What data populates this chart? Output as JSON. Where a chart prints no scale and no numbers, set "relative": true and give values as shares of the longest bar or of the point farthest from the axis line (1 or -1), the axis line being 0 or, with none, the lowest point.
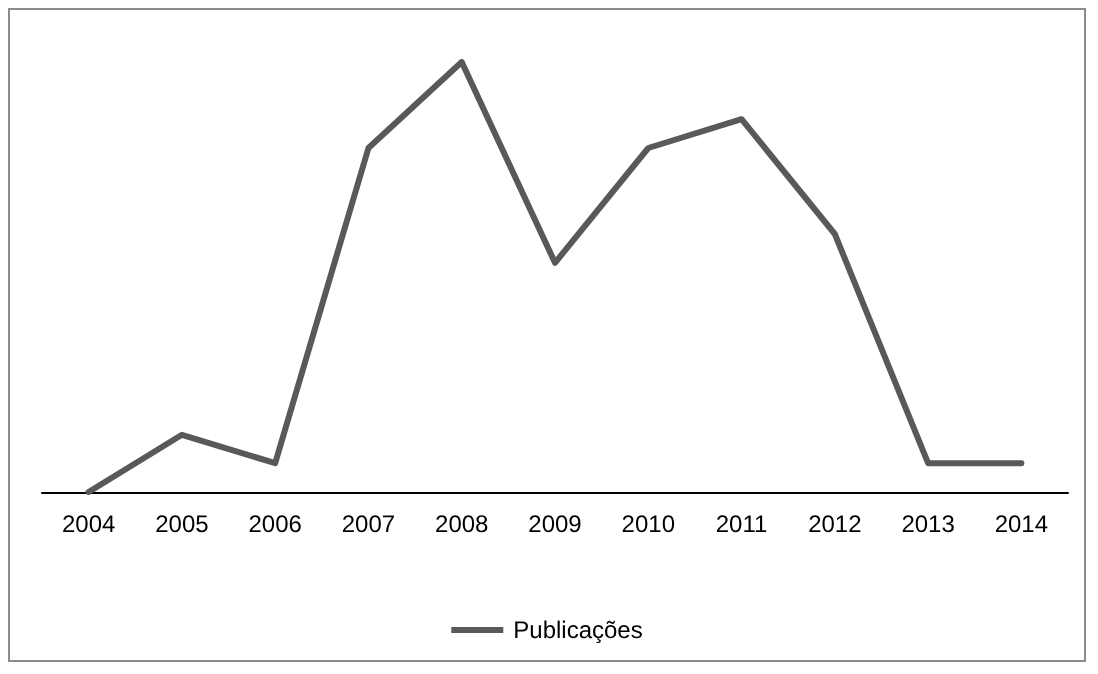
{
  "chart_data": {
    "type": "line",
    "relative": true,
    "categories": [
      "2004",
      "2005",
      "2006",
      "2007",
      "2008",
      "2009",
      "2010",
      "2011",
      "2012",
      "2013",
      "2014"
    ],
    "series": [
      {
        "name": "Publicações",
        "color": "#595959",
        "values": [
          0,
          0.133,
          0.067,
          0.8,
          1,
          0.533,
          0.8,
          0.867,
          0.6,
          0.067,
          0.067
        ]
      }
    ],
    "legend": "bottom",
    "grid": false,
    "marker": "none",
    "line_style": "solid"
  }
}
